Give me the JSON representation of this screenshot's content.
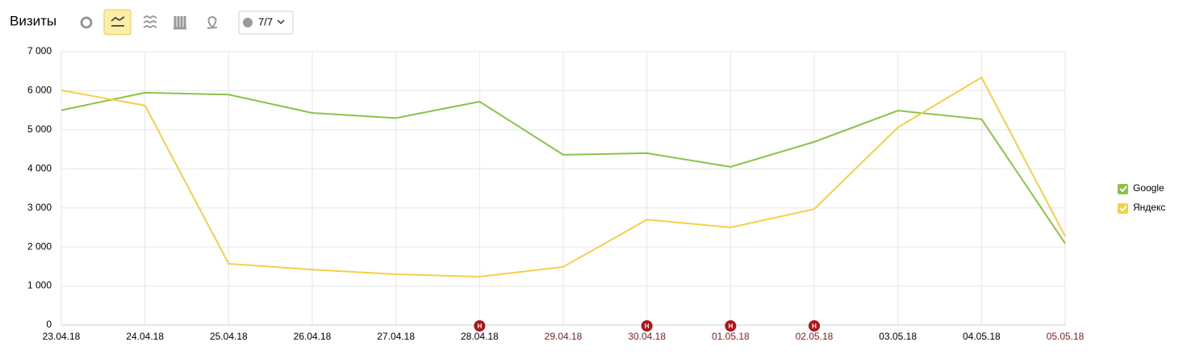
{
  "chart_data": {
    "type": "line",
    "title": "Визиты",
    "filter_label": "7/7",
    "categories": [
      "23.04.18",
      "24.04.18",
      "25.04.18",
      "26.04.18",
      "27.04.18",
      "28.04.18",
      "29.04.18",
      "30.04.18",
      "01.05.18",
      "02.05.18",
      "03.05.18",
      "04.05.18",
      "05.05.18"
    ],
    "category_colors": [
      "#000000",
      "#000000",
      "#000000",
      "#000000",
      "#000000",
      "#000000",
      "#8b1a1a",
      "#8b1a1a",
      "#8b1a1a",
      "#8b1a1a",
      "#000000",
      "#000000",
      "#8b1a1a"
    ],
    "annotations": [
      {
        "category": "28.04.18",
        "label": "Н"
      },
      {
        "category": "30.04.18",
        "label": "Н"
      },
      {
        "category": "01.05.18",
        "label": "Н"
      },
      {
        "category": "02.05.18",
        "label": "Н"
      }
    ],
    "series": [
      {
        "name": "Google",
        "color": "#8bc34a",
        "values": [
          5500,
          5950,
          5900,
          5430,
          5300,
          5720,
          4360,
          4400,
          4050,
          4690,
          5490,
          5270,
          2090
        ]
      },
      {
        "name": "Яндекс",
        "color": "#f5cf48",
        "values": [
          6010,
          5620,
          1570,
          1420,
          1300,
          1240,
          1490,
          2700,
          2500,
          2970,
          5060,
          6340,
          2270
        ]
      }
    ],
    "ylim": [
      0,
      7000
    ],
    "yticks": [
      0,
      {
        "value": 1000,
        "label": "1 000"
      },
      {
        "value": 2000,
        "label": "2 000"
      },
      {
        "value": 3000,
        "label": "3 000"
      },
      {
        "value": 4000,
        "label": "4 000"
      },
      {
        "value": 5000,
        "label": "5 000"
      },
      {
        "value": 6000,
        "label": "6 000"
      },
      {
        "value": 7000,
        "label": "7 000"
      }
    ],
    "grid": true,
    "legend": "right"
  }
}
